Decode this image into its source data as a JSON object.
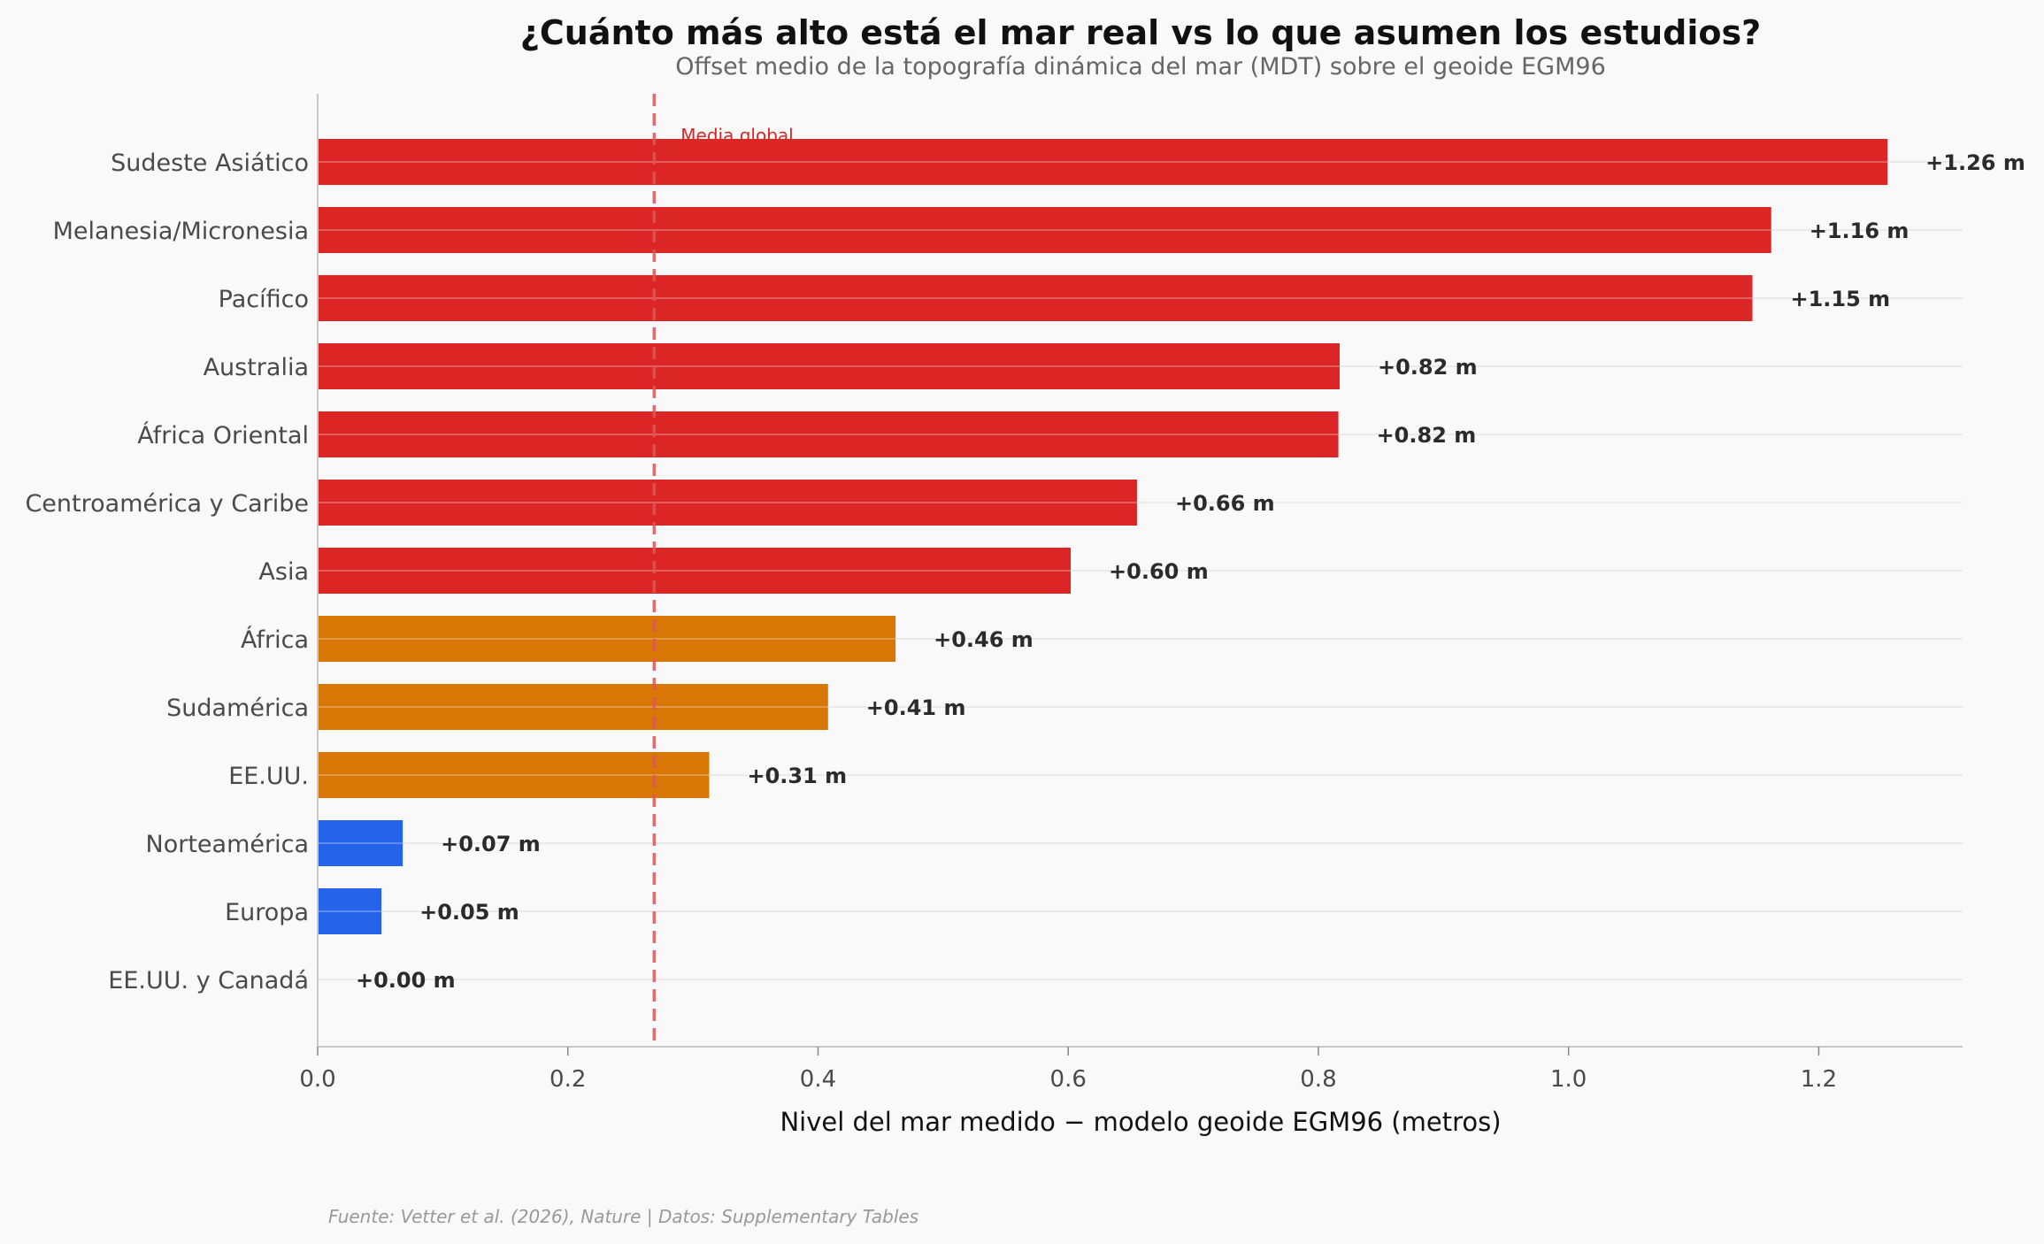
{
  "chart_data": {
    "type": "bar",
    "orientation": "horizontal",
    "title": "¿Cuánto más alto está el mar real vs lo que asumen los estudios?",
    "subtitle": "Offset medio de la topografía dinámica del mar (MDT) sobre el geoide EGM96",
    "xlabel": "Nivel del mar medido − modelo geoide EGM96 (metros)",
    "ylabel": "",
    "xlim": [
      0,
      1.315
    ],
    "xticks": [
      "0.0",
      "0.2",
      "0.4",
      "0.6",
      "0.8",
      "1.0",
      "1.2"
    ],
    "grid": "horizontal",
    "categories": [
      "Sudeste Asiático",
      "Melanesia/Micronesia",
      "Pacífico",
      "Australia",
      "África Oriental",
      "Centroamérica y Caribe",
      "Asia",
      "África",
      "Sudamérica",
      "EE.UU.",
      "Norteamérica",
      "Europa",
      "EE.UU. y Canadá"
    ],
    "values": [
      1.255,
      1.162,
      1.147,
      0.817,
      0.816,
      0.655,
      0.602,
      0.462,
      0.408,
      0.313,
      0.068,
      0.051,
      0.0
    ],
    "data_labels": [
      "+1.26 m",
      "+1.16 m",
      "+1.15 m",
      "+0.82 m",
      "+0.82 m",
      "+0.66 m",
      "+0.60 m",
      "+0.46 m",
      "+0.41 m",
      "+0.31 m",
      "+0.07 m",
      "+0.05 m",
      "+0.00 m"
    ],
    "bar_colors": [
      "#dc2626",
      "#dc2626",
      "#dc2626",
      "#dc2626",
      "#dc2626",
      "#dc2626",
      "#dc2626",
      "#d97706",
      "#d97706",
      "#d97706",
      "#2563eb",
      "#2563eb",
      "#2563eb"
    ],
    "reference_line": {
      "value": 0.269,
      "label": "Media global",
      "color": "#dc2626",
      "style": "dashed"
    },
    "footer": "Fuente: Vetter et al. (2026), Nature | Datos: Supplementary Tables"
  }
}
